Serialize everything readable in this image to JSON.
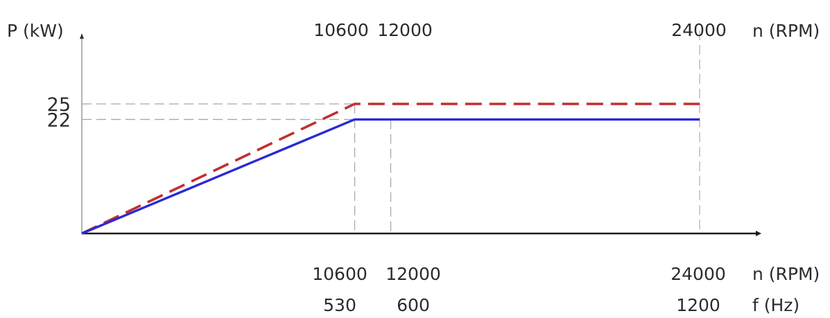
{
  "chart_data": {
    "type": "line",
    "y_axis_label": "P (kW)",
    "top_axis_label": "n (RPM)",
    "bottom_axis_labels": [
      "n (RPM)",
      "f (Hz)"
    ],
    "y_ticks": [
      {
        "value": 25,
        "label": "25"
      },
      {
        "value": 22,
        "label": "22"
      }
    ],
    "top_ticks": [
      {
        "value": 10600,
        "label": "10600"
      },
      {
        "value": 12000,
        "label": "12000"
      },
      {
        "value": 24000,
        "label": "24000"
      }
    ],
    "bottom_ticks": [
      {
        "value": 10600,
        "rpm": "10600",
        "hz": "530"
      },
      {
        "value": 12000,
        "rpm": "12000",
        "hz": "600"
      },
      {
        "value": 24000,
        "rpm": "24000",
        "hz": "1200"
      }
    ],
    "series": [
      {
        "color": "#c0302e",
        "dashed": true,
        "points": [
          [
            0,
            0
          ],
          [
            10600,
            25
          ],
          [
            24000,
            25
          ]
        ]
      },
      {
        "color": "#2a2ad4",
        "dashed": false,
        "points": [
          [
            0,
            0
          ],
          [
            10600,
            22
          ],
          [
            24000,
            22
          ]
        ]
      }
    ],
    "xlim": [
      0,
      24000
    ],
    "ylim": [
      0,
      25
    ],
    "grid": false
  }
}
